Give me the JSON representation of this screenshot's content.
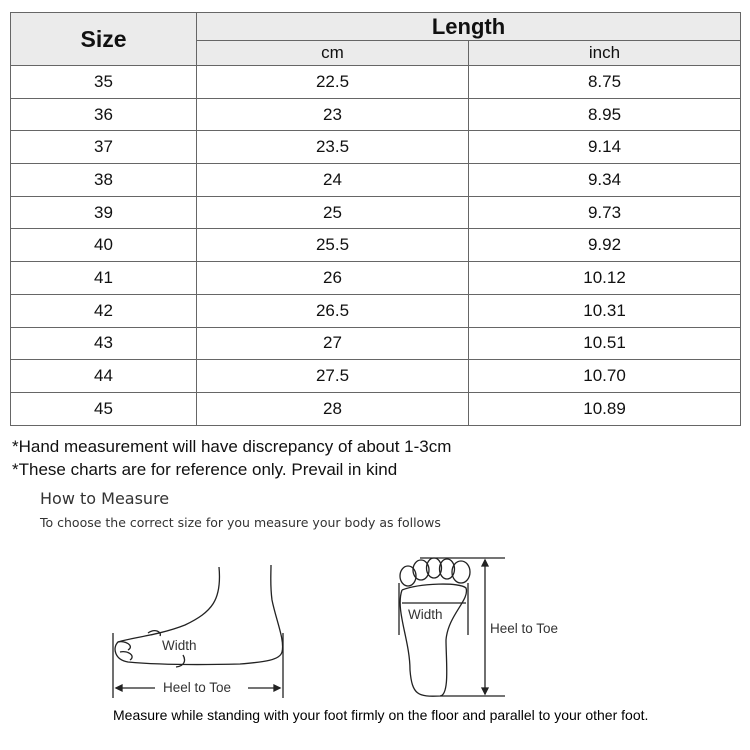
{
  "table": {
    "size_header": "Size",
    "length_header": "Length",
    "unit_headers": [
      "cm",
      "inch"
    ],
    "rows": [
      {
        "size": "35",
        "cm": "22.5",
        "inch": "8.75"
      },
      {
        "size": "36",
        "cm": "23",
        "inch": "8.95"
      },
      {
        "size": "37",
        "cm": "23.5",
        "inch": "9.14"
      },
      {
        "size": "38",
        "cm": "24",
        "inch": "9.34"
      },
      {
        "size": "39",
        "cm": "25",
        "inch": "9.73"
      },
      {
        "size": "40",
        "cm": "25.5",
        "inch": "9.92"
      },
      {
        "size": "41",
        "cm": "26",
        "inch": "10.12"
      },
      {
        "size": "42",
        "cm": "26.5",
        "inch": "10.31"
      },
      {
        "size": "43",
        "cm": "27",
        "inch": "10.51"
      },
      {
        "size": "44",
        "cm": "27.5",
        "inch": "10.70"
      },
      {
        "size": "45",
        "cm": "28",
        "inch": "10.89"
      }
    ]
  },
  "notes": [
    "*Hand measurement will have discrepancy of about 1-3cm",
    "*These charts are for reference only. Prevail in kind"
  ],
  "how_to": {
    "title": "How to Measure",
    "subtitle": "To choose the correct size for you measure your body as follows"
  },
  "diagram": {
    "side_width_label": "Width",
    "side_length_label": "Heel to Toe",
    "sole_width_label": "Width",
    "sole_length_label": "Heel to Toe"
  },
  "caption": "Measure while standing with your foot firmly on the floor and parallel to your other foot."
}
